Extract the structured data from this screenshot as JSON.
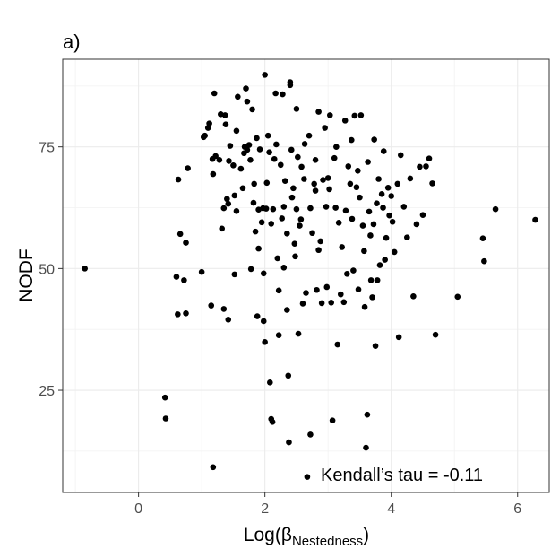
{
  "chart_data": {
    "type": "scatter",
    "panel_label": "a)",
    "xlabel_main": "Log(",
    "xlabel_greek": "β",
    "xlabel_subscript": "Nestedness",
    "xlabel_close": ")",
    "ylabel": "NODF",
    "annotation": "Kendall’s tau = -0.11",
    "xlim": [
      -1.2,
      6.5
    ],
    "ylim": [
      4,
      93
    ],
    "xticks": [
      0,
      2,
      4,
      6
    ],
    "yticks": [
      25,
      50,
      75
    ],
    "xtick_labels": [
      "0",
      "2",
      "4",
      "6"
    ],
    "ytick_labels": [
      "25",
      "50",
      "75"
    ],
    "grid": true,
    "point_color": "#000000",
    "points": [
      [
        -0.85,
        50
      ],
      [
        0.42,
        23.5
      ],
      [
        0.43,
        19.2
      ],
      [
        0.6,
        48.3
      ],
      [
        0.62,
        40.6
      ],
      [
        0.63,
        68.3
      ],
      [
        0.66,
        57.1
      ],
      [
        0.72,
        47.6
      ],
      [
        0.75,
        40.8
      ],
      [
        0.75,
        55.3
      ],
      [
        0.78,
        70.6
      ],
      [
        1.0,
        49.3
      ],
      [
        1.03,
        77.0
      ],
      [
        1.05,
        77.3
      ],
      [
        1.1,
        78.9
      ],
      [
        1.12,
        79.8
      ],
      [
        1.15,
        42.4
      ],
      [
        1.17,
        72.5
      ],
      [
        1.18,
        69.4
      ],
      [
        1.18,
        9.2
      ],
      [
        1.2,
        86.0
      ],
      [
        1.22,
        73.1
      ],
      [
        1.28,
        72.3
      ],
      [
        1.3,
        81.7
      ],
      [
        1.32,
        58.2
      ],
      [
        1.35,
        62.4
      ],
      [
        1.35,
        41.7
      ],
      [
        1.37,
        81.5
      ],
      [
        1.38,
        79.6
      ],
      [
        1.4,
        64.3
      ],
      [
        1.42,
        63.3
      ],
      [
        1.42,
        39.5
      ],
      [
        1.43,
        72.1
      ],
      [
        1.45,
        75.2
      ],
      [
        1.5,
        71.2
      ],
      [
        1.52,
        48.8
      ],
      [
        1.52,
        65.0
      ],
      [
        1.55,
        61.8
      ],
      [
        1.55,
        78.3
      ],
      [
        1.57,
        85.3
      ],
      [
        1.62,
        70.5
      ],
      [
        1.65,
        66.5
      ],
      [
        1.67,
        73.7
      ],
      [
        1.68,
        75.0
      ],
      [
        1.7,
        87.0
      ],
      [
        1.72,
        84.3
      ],
      [
        1.72,
        74.4
      ],
      [
        1.75,
        75.4
      ],
      [
        1.77,
        72.3
      ],
      [
        1.78,
        49.9
      ],
      [
        1.8,
        82.7
      ],
      [
        1.82,
        63.5
      ],
      [
        1.83,
        67.4
      ],
      [
        1.85,
        57.6
      ],
      [
        1.87,
        76.8
      ],
      [
        1.88,
        40.2
      ],
      [
        1.9,
        62.1
      ],
      [
        1.9,
        54.1
      ],
      [
        1.92,
        74.5
      ],
      [
        1.95,
        59.5
      ],
      [
        1.97,
        62.4
      ],
      [
        1.98,
        49.0
      ],
      [
        1.98,
        39.2
      ],
      [
        2.0,
        89.8
      ],
      [
        2.0,
        34.9
      ],
      [
        2.02,
        62.3
      ],
      [
        2.03,
        67.6
      ],
      [
        2.05,
        77.3
      ],
      [
        2.07,
        73.9
      ],
      [
        2.08,
        26.6
      ],
      [
        2.1,
        19.1
      ],
      [
        2.1,
        59.2
      ],
      [
        2.12,
        18.5
      ],
      [
        2.13,
        62.2
      ],
      [
        2.15,
        72.5
      ],
      [
        2.17,
        86.0
      ],
      [
        2.18,
        75.5
      ],
      [
        2.2,
        52.1
      ],
      [
        2.22,
        45.5
      ],
      [
        2.22,
        36.3
      ],
      [
        2.25,
        71.3
      ],
      [
        2.27,
        60.3
      ],
      [
        2.28,
        85.8
      ],
      [
        2.3,
        62.7
      ],
      [
        2.3,
        50.2
      ],
      [
        2.32,
        68.0
      ],
      [
        2.35,
        57.2
      ],
      [
        2.35,
        41.5
      ],
      [
        2.37,
        28.0
      ],
      [
        2.38,
        14.3
      ],
      [
        2.4,
        88.3
      ],
      [
        2.4,
        87.7
      ],
      [
        2.42,
        74.4
      ],
      [
        2.43,
        64.6
      ],
      [
        2.45,
        66.5
      ],
      [
        2.47,
        55.1
      ],
      [
        2.48,
        52.5
      ],
      [
        2.5,
        82.8
      ],
      [
        2.5,
        62.2
      ],
      [
        2.52,
        72.9
      ],
      [
        2.53,
        36.6
      ],
      [
        2.55,
        58.8
      ],
      [
        2.57,
        60.1
      ],
      [
        2.58,
        70.9
      ],
      [
        2.6,
        42.8
      ],
      [
        2.62,
        68.4
      ],
      [
        2.63,
        75.6
      ],
      [
        2.65,
        45.0
      ],
      [
        2.67,
        7.2
      ],
      [
        2.7,
        77.3
      ],
      [
        2.72,
        62.4
      ],
      [
        2.72,
        15.9
      ],
      [
        2.75,
        57.3
      ],
      [
        2.78,
        67.4
      ],
      [
        2.8,
        72.3
      ],
      [
        2.8,
        66.0
      ],
      [
        2.82,
        45.6
      ],
      [
        2.85,
        82.2
      ],
      [
        2.85,
        53.8
      ],
      [
        2.88,
        55.6
      ],
      [
        2.9,
        42.9
      ],
      [
        2.92,
        68.2
      ],
      [
        2.95,
        78.9
      ],
      [
        2.97,
        62.7
      ],
      [
        2.98,
        46.2
      ],
      [
        3.0,
        68.6
      ],
      [
        3.02,
        66.3
      ],
      [
        3.03,
        81.5
      ],
      [
        3.05,
        43.0
      ],
      [
        3.07,
        18.8
      ],
      [
        3.1,
        72.7
      ],
      [
        3.12,
        62.5
      ],
      [
        3.13,
        75.0
      ],
      [
        3.15,
        34.4
      ],
      [
        3.17,
        59.4
      ],
      [
        3.2,
        44.7
      ],
      [
        3.22,
        54.4
      ],
      [
        3.25,
        43.1
      ],
      [
        3.27,
        80.4
      ],
      [
        3.28,
        61.9
      ],
      [
        3.3,
        48.9
      ],
      [
        3.32,
        71.0
      ],
      [
        3.35,
        67.4
      ],
      [
        3.37,
        76.4
      ],
      [
        3.38,
        60.2
      ],
      [
        3.4,
        49.6
      ],
      [
        3.42,
        81.4
      ],
      [
        3.45,
        66.7
      ],
      [
        3.47,
        70.1
      ],
      [
        3.48,
        45.7
      ],
      [
        3.5,
        64.6
      ],
      [
        3.52,
        81.5
      ],
      [
        3.55,
        58.8
      ],
      [
        3.57,
        53.6
      ],
      [
        3.58,
        42.1
      ],
      [
        3.6,
        13.2
      ],
      [
        3.62,
        20.0
      ],
      [
        3.63,
        71.9
      ],
      [
        3.65,
        61.7
      ],
      [
        3.67,
        56.8
      ],
      [
        3.68,
        47.6
      ],
      [
        3.7,
        44.1
      ],
      [
        3.72,
        59.1
      ],
      [
        3.73,
        76.5
      ],
      [
        3.75,
        34.1
      ],
      [
        3.77,
        63.4
      ],
      [
        3.78,
        47.6
      ],
      [
        3.8,
        68.4
      ],
      [
        3.82,
        50.7
      ],
      [
        3.85,
        65.3
      ],
      [
        3.87,
        62.5
      ],
      [
        3.88,
        74.1
      ],
      [
        3.9,
        51.8
      ],
      [
        3.92,
        56.3
      ],
      [
        3.95,
        66.6
      ],
      [
        3.97,
        60.9
      ],
      [
        4.0,
        64.9
      ],
      [
        4.02,
        59.6
      ],
      [
        4.05,
        53.4
      ],
      [
        4.1,
        67.4
      ],
      [
        4.12,
        35.9
      ],
      [
        4.15,
        73.3
      ],
      [
        4.2,
        62.7
      ],
      [
        4.25,
        56.4
      ],
      [
        4.3,
        68.5
      ],
      [
        4.35,
        44.3
      ],
      [
        4.4,
        59.1
      ],
      [
        4.45,
        70.9
      ],
      [
        4.5,
        61.0
      ],
      [
        4.55,
        71.0
      ],
      [
        4.6,
        72.6
      ],
      [
        4.65,
        67.5
      ],
      [
        4.7,
        36.4
      ],
      [
        5.05,
        44.2
      ],
      [
        5.45,
        56.2
      ],
      [
        5.47,
        51.5
      ],
      [
        5.65,
        62.2
      ],
      [
        6.28,
        60.0
      ]
    ]
  }
}
